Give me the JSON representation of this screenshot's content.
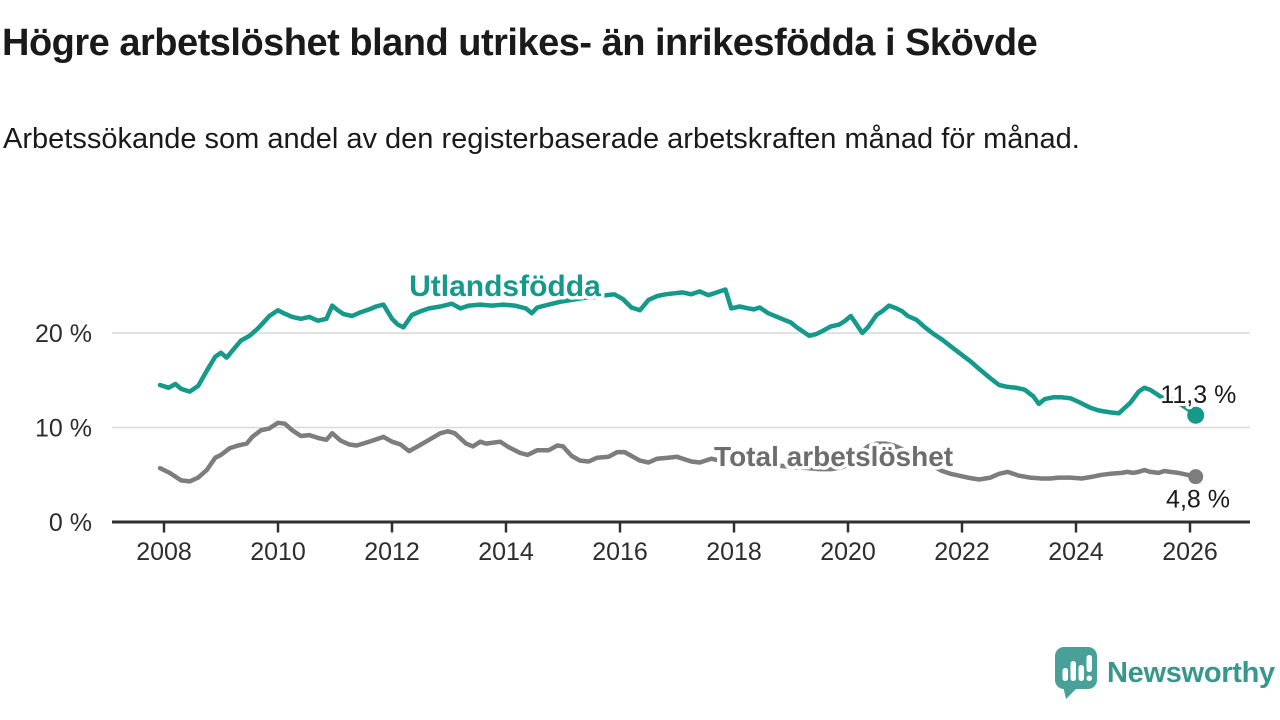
{
  "header": {
    "title": "Högre arbetslöshet bland utrikes- än inrikesfödda i Skövde",
    "subtitle": "Arbetssökande som andel av den registerbaserade arbetskraften månad för månad."
  },
  "footer": {
    "brand": "Newsworthy",
    "logo_color": "#48a098",
    "text_color": "#38978d"
  },
  "colors": {
    "accent_teal": "#14998a",
    "neutral_gray": "#7d7d7d",
    "axis": "#2f2f2f",
    "gridline": "#d9d9d9",
    "text_dark": "#1a1a1a",
    "tick_label": "#2d2d2d"
  },
  "chart_data": {
    "type": "line",
    "title": "Högre arbetslöshet bland utrikes- än inrikesfödda i Skövde",
    "xlabel": "",
    "ylabel": "",
    "unit": "%",
    "grid": "horizontal",
    "legend_position": "inline-labels",
    "xlim": [
      2007.8,
      2027.0
    ],
    "ylim": [
      0,
      27
    ],
    "x_ticks": [
      2008,
      2010,
      2012,
      2014,
      2016,
      2018,
      2020,
      2022,
      2024,
      2026
    ],
    "y_ticks": [
      {
        "value": 0,
        "label": "0 %"
      },
      {
        "value": 10,
        "label": "10 %"
      },
      {
        "value": 20,
        "label": "20 %"
      }
    ],
    "series": [
      {
        "name": "Utlandsfödda",
        "color": "#14998a",
        "label_color": "#14998a",
        "end_value_label": "11,3 %",
        "end_value": 11.3,
        "label_anchor": {
          "x": 2012.3,
          "y": 23.9
        },
        "end_label_anchor": {
          "x": 2025.48,
          "y": 12.6
        },
        "points": [
          [
            2007.93,
            14.5
          ],
          [
            2008.08,
            14.2
          ],
          [
            2008.2,
            14.6
          ],
          [
            2008.3,
            14.1
          ],
          [
            2008.45,
            13.8
          ],
          [
            2008.6,
            14.4
          ],
          [
            2008.75,
            16.0
          ],
          [
            2008.9,
            17.5
          ],
          [
            2009.0,
            17.9
          ],
          [
            2009.1,
            17.4
          ],
          [
            2009.25,
            18.5
          ],
          [
            2009.35,
            19.2
          ],
          [
            2009.5,
            19.7
          ],
          [
            2009.65,
            20.5
          ],
          [
            2009.85,
            21.8
          ],
          [
            2010.0,
            22.4
          ],
          [
            2010.1,
            22.1
          ],
          [
            2010.25,
            21.7
          ],
          [
            2010.4,
            21.5
          ],
          [
            2010.55,
            21.7
          ],
          [
            2010.7,
            21.3
          ],
          [
            2010.85,
            21.5
          ],
          [
            2010.95,
            22.9
          ],
          [
            2011.05,
            22.4
          ],
          [
            2011.15,
            22.0
          ],
          [
            2011.3,
            21.8
          ],
          [
            2011.45,
            22.2
          ],
          [
            2011.6,
            22.5
          ],
          [
            2011.72,
            22.8
          ],
          [
            2011.85,
            23.0
          ],
          [
            2012.0,
            21.5
          ],
          [
            2012.1,
            20.9
          ],
          [
            2012.2,
            20.6
          ],
          [
            2012.35,
            21.9
          ],
          [
            2012.5,
            22.3
          ],
          [
            2012.65,
            22.6
          ],
          [
            2012.85,
            22.8
          ],
          [
            2013.05,
            23.1
          ],
          [
            2013.2,
            22.6
          ],
          [
            2013.35,
            22.9
          ],
          [
            2013.55,
            23.0
          ],
          [
            2013.75,
            22.9
          ],
          [
            2013.95,
            23.0
          ],
          [
            2014.15,
            22.9
          ],
          [
            2014.35,
            22.6
          ],
          [
            2014.45,
            22.1
          ],
          [
            2014.55,
            22.7
          ],
          [
            2014.75,
            23.0
          ],
          [
            2014.95,
            23.3
          ],
          [
            2015.15,
            23.5
          ],
          [
            2015.35,
            23.7
          ],
          [
            2015.55,
            23.8
          ],
          [
            2015.75,
            24.0
          ],
          [
            2015.9,
            24.1
          ],
          [
            2016.05,
            23.6
          ],
          [
            2016.2,
            22.7
          ],
          [
            2016.35,
            22.4
          ],
          [
            2016.5,
            23.5
          ],
          [
            2016.65,
            23.9
          ],
          [
            2016.8,
            24.1
          ],
          [
            2016.95,
            24.2
          ],
          [
            2017.1,
            24.3
          ],
          [
            2017.25,
            24.1
          ],
          [
            2017.4,
            24.4
          ],
          [
            2017.55,
            24.0
          ],
          [
            2017.7,
            24.3
          ],
          [
            2017.85,
            24.6
          ],
          [
            2017.95,
            22.6
          ],
          [
            2018.1,
            22.8
          ],
          [
            2018.25,
            22.6
          ],
          [
            2018.35,
            22.5
          ],
          [
            2018.45,
            22.7
          ],
          [
            2018.6,
            22.1
          ],
          [
            2018.8,
            21.6
          ],
          [
            2019.0,
            21.1
          ],
          [
            2019.1,
            20.6
          ],
          [
            2019.2,
            20.2
          ],
          [
            2019.32,
            19.7
          ],
          [
            2019.45,
            19.9
          ],
          [
            2019.55,
            20.2
          ],
          [
            2019.7,
            20.7
          ],
          [
            2019.85,
            20.9
          ],
          [
            2019.95,
            21.3
          ],
          [
            2020.05,
            21.8
          ],
          [
            2020.15,
            20.9
          ],
          [
            2020.25,
            20.0
          ],
          [
            2020.35,
            20.6
          ],
          [
            2020.5,
            21.9
          ],
          [
            2020.6,
            22.3
          ],
          [
            2020.72,
            22.9
          ],
          [
            2020.85,
            22.6
          ],
          [
            2020.95,
            22.3
          ],
          [
            2021.05,
            21.8
          ],
          [
            2021.2,
            21.4
          ],
          [
            2021.35,
            20.6
          ],
          [
            2021.5,
            19.9
          ],
          [
            2021.65,
            19.3
          ],
          [
            2021.8,
            18.6
          ],
          [
            2021.95,
            17.9
          ],
          [
            2022.15,
            17.0
          ],
          [
            2022.3,
            16.2
          ],
          [
            2022.5,
            15.2
          ],
          [
            2022.65,
            14.5
          ],
          [
            2022.8,
            14.3
          ],
          [
            2022.95,
            14.2
          ],
          [
            2023.1,
            14.0
          ],
          [
            2023.25,
            13.3
          ],
          [
            2023.35,
            12.5
          ],
          [
            2023.45,
            13.0
          ],
          [
            2023.6,
            13.2
          ],
          [
            2023.75,
            13.2
          ],
          [
            2023.9,
            13.1
          ],
          [
            2024.05,
            12.7
          ],
          [
            2024.25,
            12.1
          ],
          [
            2024.4,
            11.8
          ],
          [
            2024.6,
            11.6
          ],
          [
            2024.75,
            11.5
          ],
          [
            2024.95,
            12.6
          ],
          [
            2025.1,
            13.8
          ],
          [
            2025.2,
            14.2
          ],
          [
            2025.3,
            14.0
          ],
          [
            2025.4,
            13.6
          ],
          [
            2025.5,
            13.2
          ],
          [
            2025.6,
            13.1
          ],
          [
            2025.7,
            12.9
          ],
          [
            2025.85,
            12.4
          ],
          [
            2026.0,
            11.8
          ],
          [
            2026.1,
            11.3
          ]
        ]
      },
      {
        "name": "Total arbetslöshet",
        "color": "#7d7d7d",
        "label_color": "#6d6d6d",
        "end_value_label": "4,8 %",
        "end_value": 4.8,
        "label_anchor": {
          "x": 2017.65,
          "y": 5.9
        },
        "end_label_anchor": {
          "x": 2025.58,
          "y": 1.55
        },
        "points": [
          [
            2007.93,
            5.7
          ],
          [
            2008.1,
            5.2
          ],
          [
            2008.3,
            4.4
          ],
          [
            2008.45,
            4.3
          ],
          [
            2008.6,
            4.7
          ],
          [
            2008.75,
            5.5
          ],
          [
            2008.9,
            6.8
          ],
          [
            2009.0,
            7.1
          ],
          [
            2009.15,
            7.8
          ],
          [
            2009.3,
            8.1
          ],
          [
            2009.45,
            8.3
          ],
          [
            2009.55,
            9.0
          ],
          [
            2009.7,
            9.7
          ],
          [
            2009.85,
            9.9
          ],
          [
            2010.0,
            10.5
          ],
          [
            2010.12,
            10.4
          ],
          [
            2010.25,
            9.7
          ],
          [
            2010.4,
            9.1
          ],
          [
            2010.55,
            9.2
          ],
          [
            2010.7,
            8.9
          ],
          [
            2010.85,
            8.7
          ],
          [
            2010.95,
            9.4
          ],
          [
            2011.1,
            8.6
          ],
          [
            2011.25,
            8.2
          ],
          [
            2011.38,
            8.1
          ],
          [
            2011.55,
            8.4
          ],
          [
            2011.7,
            8.7
          ],
          [
            2011.85,
            9.0
          ],
          [
            2012.0,
            8.5
          ],
          [
            2012.15,
            8.2
          ],
          [
            2012.3,
            7.5
          ],
          [
            2012.45,
            8.0
          ],
          [
            2012.65,
            8.7
          ],
          [
            2012.85,
            9.4
          ],
          [
            2012.98,
            9.6
          ],
          [
            2013.1,
            9.4
          ],
          [
            2013.3,
            8.3
          ],
          [
            2013.42,
            8.0
          ],
          [
            2013.55,
            8.5
          ],
          [
            2013.65,
            8.3
          ],
          [
            2013.78,
            8.4
          ],
          [
            2013.9,
            8.5
          ],
          [
            2014.05,
            7.9
          ],
          [
            2014.25,
            7.3
          ],
          [
            2014.38,
            7.1
          ],
          [
            2014.55,
            7.6
          ],
          [
            2014.75,
            7.6
          ],
          [
            2014.9,
            8.1
          ],
          [
            2015.0,
            8.0
          ],
          [
            2015.15,
            7.0
          ],
          [
            2015.3,
            6.5
          ],
          [
            2015.45,
            6.4
          ],
          [
            2015.6,
            6.8
          ],
          [
            2015.8,
            6.9
          ],
          [
            2015.95,
            7.4
          ],
          [
            2016.08,
            7.4
          ],
          [
            2016.2,
            7.0
          ],
          [
            2016.35,
            6.5
          ],
          [
            2016.5,
            6.3
          ],
          [
            2016.65,
            6.7
          ],
          [
            2016.85,
            6.8
          ],
          [
            2017.0,
            6.9
          ],
          [
            2017.25,
            6.4
          ],
          [
            2017.4,
            6.3
          ],
          [
            2017.6,
            6.7
          ],
          [
            2017.75,
            6.5
          ],
          [
            2017.9,
            6.4
          ],
          [
            2018.1,
            6.3
          ],
          [
            2018.3,
            6.2
          ],
          [
            2018.5,
            6.1
          ],
          [
            2018.7,
            6.0
          ],
          [
            2018.9,
            5.9
          ],
          [
            2019.1,
            5.8
          ],
          [
            2019.3,
            5.7
          ],
          [
            2019.5,
            5.6
          ],
          [
            2019.7,
            5.6
          ],
          [
            2019.9,
            5.8
          ],
          [
            2020.05,
            6.2
          ],
          [
            2020.2,
            7.2
          ],
          [
            2020.35,
            8.0
          ],
          [
            2020.5,
            8.3
          ],
          [
            2020.65,
            8.3
          ],
          [
            2020.8,
            8.1
          ],
          [
            2020.95,
            7.7
          ],
          [
            2021.1,
            7.2
          ],
          [
            2021.3,
            6.6
          ],
          [
            2021.5,
            5.9
          ],
          [
            2021.65,
            5.4
          ],
          [
            2021.8,
            5.1
          ],
          [
            2021.95,
            4.9
          ],
          [
            2022.1,
            4.7
          ],
          [
            2022.3,
            4.5
          ],
          [
            2022.5,
            4.7
          ],
          [
            2022.65,
            5.1
          ],
          [
            2022.8,
            5.3
          ],
          [
            2023.0,
            4.9
          ],
          [
            2023.2,
            4.7
          ],
          [
            2023.4,
            4.6
          ],
          [
            2023.55,
            4.6
          ],
          [
            2023.7,
            4.7
          ],
          [
            2023.9,
            4.7
          ],
          [
            2024.1,
            4.6
          ],
          [
            2024.3,
            4.8
          ],
          [
            2024.45,
            5.0
          ],
          [
            2024.6,
            5.1
          ],
          [
            2024.8,
            5.2
          ],
          [
            2024.9,
            5.3
          ],
          [
            2025.0,
            5.2
          ],
          [
            2025.1,
            5.3
          ],
          [
            2025.2,
            5.5
          ],
          [
            2025.3,
            5.3
          ],
          [
            2025.45,
            5.2
          ],
          [
            2025.55,
            5.4
          ],
          [
            2025.65,
            5.3
          ],
          [
            2025.8,
            5.2
          ],
          [
            2025.95,
            5.0
          ],
          [
            2026.1,
            4.8
          ]
        ]
      }
    ]
  }
}
